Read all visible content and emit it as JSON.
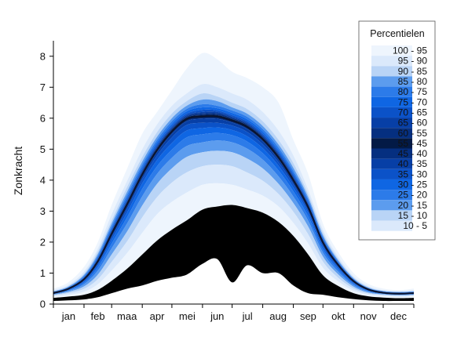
{
  "chart_data": {
    "type": "area",
    "ylabel": "Zonkracht",
    "xlabel": "",
    "ylim": [
      0,
      8.5
    ],
    "yticks": [
      0,
      1,
      2,
      3,
      4,
      5,
      6,
      7,
      8
    ],
    "months": [
      "jan",
      "feb",
      "maa",
      "apr",
      "mei",
      "jun",
      "jul",
      "aug",
      "sep",
      "okt",
      "nov",
      "dec"
    ],
    "x_days": [
      0,
      31,
      59,
      90,
      120,
      151,
      181,
      212,
      243,
      273,
      304,
      334,
      365
    ],
    "legend": {
      "title": "Percentielen",
      "placement": "top-right",
      "entries": [
        "100 - 95",
        "95 - 90",
        "90 - 85",
        "85 - 80",
        "80 - 75",
        "75 - 70",
        "70 - 65",
        "65 - 60",
        "60 - 55",
        "55 - 45",
        "45 - 40",
        "40 - 35",
        "35 - 30",
        "30 - 25",
        "25 - 20",
        "20 - 15",
        "15 - 10",
        "10 -  5"
      ]
    },
    "band_colors": [
      "#eef5fd",
      "#dbe9fb",
      "#b9d4f6",
      "#5c9cee",
      "#2c7be9",
      "#0f66e3",
      "#0b52c8",
      "#073fa6",
      "#052f80",
      "#031a46",
      "#052f80",
      "#073fa6",
      "#0b52c8",
      "#0f66e3",
      "#2c7be9",
      "#5c9cee",
      "#b9d4f6",
      "#dbe9fb",
      "#eef5fd"
    ],
    "median_color": "#0a1430",
    "percentile_levels": [
      100,
      95,
      90,
      85,
      80,
      75,
      70,
      65,
      60,
      55,
      50,
      45,
      40,
      35,
      30,
      25,
      20,
      15,
      10,
      5,
      0
    ],
    "percentiles": {
      "days": [
        0,
        15,
        31,
        45,
        59,
        75,
        90,
        105,
        120,
        135,
        151,
        166,
        181,
        196,
        212,
        228,
        243,
        258,
        273,
        288,
        304,
        319,
        334,
        350,
        365
      ],
      "p100": [
        0.5,
        0.7,
        1.2,
        2.0,
        3.2,
        4.4,
        5.5,
        6.2,
        6.9,
        7.6,
        8.1,
        7.9,
        7.5,
        7.3,
        7.0,
        6.5,
        5.3,
        4.2,
        2.6,
        1.7,
        1.0,
        0.65,
        0.5,
        0.45,
        0.5
      ],
      "p95": [
        0.45,
        0.62,
        1.05,
        1.8,
        2.9,
        4.0,
        5.0,
        5.8,
        6.4,
        6.8,
        7.1,
        7.0,
        6.8,
        6.6,
        6.2,
        5.6,
        4.8,
        3.7,
        2.4,
        1.55,
        0.9,
        0.58,
        0.45,
        0.42,
        0.45
      ],
      "p90": [
        0.42,
        0.58,
        0.98,
        1.7,
        2.7,
        3.8,
        4.75,
        5.55,
        6.15,
        6.55,
        6.8,
        6.7,
        6.5,
        6.3,
        5.9,
        5.3,
        4.55,
        3.55,
        2.3,
        1.48,
        0.86,
        0.55,
        0.43,
        0.4,
        0.42
      ],
      "p85": [
        0.41,
        0.56,
        0.94,
        1.62,
        2.6,
        3.65,
        4.6,
        5.4,
        6.0,
        6.4,
        6.6,
        6.55,
        6.35,
        6.15,
        5.75,
        5.15,
        4.4,
        3.45,
        2.22,
        1.43,
        0.83,
        0.53,
        0.42,
        0.39,
        0.41
      ],
      "p80": [
        0.4,
        0.54,
        0.91,
        1.56,
        2.52,
        3.55,
        4.5,
        5.3,
        5.9,
        6.3,
        6.45,
        6.4,
        6.25,
        6.05,
        5.65,
        5.05,
        4.3,
        3.38,
        2.17,
        1.4,
        0.81,
        0.52,
        0.41,
        0.38,
        0.4
      ],
      "p75": [
        0.39,
        0.53,
        0.88,
        1.52,
        2.46,
        3.47,
        4.42,
        5.22,
        5.82,
        6.22,
        6.35,
        6.32,
        6.17,
        5.97,
        5.57,
        4.97,
        4.23,
        3.32,
        2.13,
        1.37,
        0.79,
        0.51,
        0.4,
        0.37,
        0.39
      ],
      "p70": [
        0.38,
        0.52,
        0.86,
        1.48,
        2.41,
        3.41,
        4.36,
        5.15,
        5.75,
        6.15,
        6.27,
        6.25,
        6.1,
        5.9,
        5.5,
        4.91,
        4.17,
        3.27,
        2.09,
        1.35,
        0.78,
        0.5,
        0.39,
        0.36,
        0.38
      ],
      "p65": [
        0.37,
        0.51,
        0.84,
        1.45,
        2.37,
        3.36,
        4.31,
        5.1,
        5.7,
        6.1,
        6.2,
        6.2,
        6.05,
        5.85,
        5.45,
        4.86,
        4.12,
        3.23,
        2.06,
        1.33,
        0.77,
        0.49,
        0.38,
        0.35,
        0.37
      ],
      "p60": [
        0.365,
        0.505,
        0.83,
        1.43,
        2.34,
        3.32,
        4.27,
        5.06,
        5.66,
        6.06,
        6.15,
        6.15,
        6.01,
        5.81,
        5.41,
        4.82,
        4.08,
        3.2,
        2.04,
        1.31,
        0.76,
        0.485,
        0.375,
        0.345,
        0.365
      ],
      "p55": [
        0.36,
        0.5,
        0.82,
        1.41,
        2.31,
        3.29,
        4.23,
        5.02,
        5.62,
        6.02,
        6.1,
        6.1,
        5.97,
        5.77,
        5.37,
        4.78,
        4.05,
        3.17,
        2.02,
        1.3,
        0.75,
        0.48,
        0.37,
        0.34,
        0.36
      ],
      "p50": [
        0.355,
        0.49,
        0.8,
        1.38,
        2.27,
        3.24,
        4.18,
        4.97,
        5.57,
        5.97,
        6.05,
        6.05,
        5.92,
        5.72,
        5.32,
        4.73,
        4.0,
        3.13,
        1.99,
        1.28,
        0.74,
        0.47,
        0.365,
        0.335,
        0.355
      ],
      "p45": [
        0.35,
        0.48,
        0.78,
        1.35,
        2.22,
        3.18,
        4.12,
        4.91,
        5.5,
        5.9,
        5.98,
        5.98,
        5.86,
        5.66,
        5.26,
        4.67,
        3.95,
        3.08,
        1.95,
        1.25,
        0.72,
        0.46,
        0.36,
        0.33,
        0.35
      ],
      "p40": [
        0.345,
        0.47,
        0.76,
        1.31,
        2.16,
        3.1,
        4.03,
        4.8,
        5.38,
        5.78,
        5.85,
        5.85,
        5.76,
        5.56,
        5.16,
        4.58,
        3.87,
        3.02,
        1.9,
        1.22,
        0.7,
        0.45,
        0.355,
        0.325,
        0.345
      ],
      "p35": [
        0.34,
        0.46,
        0.73,
        1.25,
        2.07,
        2.98,
        3.9,
        4.65,
        5.2,
        5.6,
        5.68,
        5.7,
        5.62,
        5.42,
        5.03,
        4.46,
        3.77,
        2.94,
        1.84,
        1.18,
        0.68,
        0.44,
        0.35,
        0.32,
        0.34
      ],
      "p30": [
        0.33,
        0.44,
        0.69,
        1.18,
        1.95,
        2.82,
        3.72,
        4.45,
        4.98,
        5.38,
        5.48,
        5.52,
        5.45,
        5.25,
        4.87,
        4.31,
        3.64,
        2.83,
        1.76,
        1.13,
        0.65,
        0.42,
        0.34,
        0.31,
        0.33
      ],
      "p25": [
        0.32,
        0.42,
        0.64,
        1.08,
        1.8,
        2.62,
        3.48,
        4.2,
        4.72,
        5.1,
        5.22,
        5.28,
        5.22,
        5.02,
        4.66,
        4.12,
        3.47,
        2.69,
        1.66,
        1.06,
        0.61,
        0.4,
        0.33,
        0.3,
        0.32
      ],
      "p20": [
        0.3,
        0.39,
        0.57,
        0.95,
        1.6,
        2.36,
        3.18,
        3.88,
        4.38,
        4.75,
        4.9,
        4.95,
        4.9,
        4.7,
        4.38,
        3.88,
        3.26,
        2.5,
        1.53,
        0.97,
        0.56,
        0.37,
        0.31,
        0.28,
        0.3
      ],
      "p15": [
        0.28,
        0.35,
        0.49,
        0.8,
        1.36,
        2.04,
        2.8,
        3.45,
        3.92,
        4.25,
        4.45,
        4.5,
        4.45,
        4.25,
        3.98,
        3.55,
        2.98,
        2.25,
        1.37,
        0.86,
        0.5,
        0.34,
        0.29,
        0.26,
        0.28
      ],
      "p10": [
        0.25,
        0.3,
        0.4,
        0.64,
        1.08,
        1.66,
        2.3,
        2.9,
        3.3,
        3.6,
        3.85,
        3.9,
        3.85,
        3.7,
        3.5,
        3.15,
        2.62,
        1.95,
        1.17,
        0.74,
        0.43,
        0.3,
        0.26,
        0.23,
        0.25
      ],
      "p5": [
        0.2,
        0.24,
        0.3,
        0.46,
        0.75,
        1.15,
        1.6,
        2.05,
        2.4,
        2.7,
        3.05,
        3.15,
        3.2,
        3.1,
        2.95,
        2.65,
        2.2,
        1.6,
        0.93,
        0.59,
        0.35,
        0.25,
        0.21,
        0.19,
        0.2
      ],
      "p0": [
        0.1,
        0.12,
        0.15,
        0.22,
        0.35,
        0.5,
        0.6,
        0.75,
        0.85,
        0.95,
        1.3,
        1.45,
        0.7,
        1.25,
        1.0,
        1.0,
        0.6,
        0.35,
        0.3,
        0.22,
        0.16,
        0.12,
        0.1,
        0.1,
        0.1
      ]
    }
  }
}
